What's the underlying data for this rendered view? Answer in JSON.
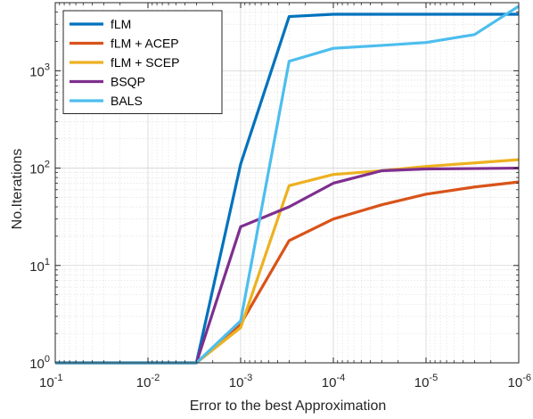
{
  "chart_data": {
    "type": "line",
    "title": "",
    "xlabel": "Error to the best Approximation",
    "ylabel": "No.Iterations",
    "x_scale": "log",
    "x_reversed": true,
    "y_scale": "log",
    "xlim": [
      0.1,
      1e-06
    ],
    "ylim": [
      1,
      5000
    ],
    "xticks": [
      {
        "base": "10",
        "exp": "-1"
      },
      {
        "base": "10",
        "exp": "-2"
      },
      {
        "base": "10",
        "exp": "-3"
      },
      {
        "base": "10",
        "exp": "-4"
      },
      {
        "base": "10",
        "exp": "-5"
      },
      {
        "base": "10",
        "exp": "-6"
      }
    ],
    "yticks": [
      {
        "base": "10",
        "exp": "0"
      },
      {
        "base": "10",
        "exp": "1"
      },
      {
        "base": "10",
        "exp": "2"
      },
      {
        "base": "10",
        "exp": "3"
      }
    ],
    "grid": "major and minor",
    "legend_position": "top-left",
    "x": [
      0.1,
      0.003,
      0.001,
      0.0003,
      0.0001,
      3e-05,
      1e-05,
      3e-06,
      1e-06
    ],
    "series": [
      {
        "name": "fLM",
        "color": "#0072BD",
        "values": [
          1,
          1,
          110,
          3600,
          3800,
          3800,
          3800,
          3800,
          3800
        ]
      },
      {
        "name": "fLM + ACEP",
        "color": "#D95319",
        "values": [
          1,
          1,
          2.5,
          18,
          30,
          42,
          54,
          64,
          72
        ]
      },
      {
        "name": "fLM + SCEP",
        "color": "#EDB120",
        "values": [
          1,
          1,
          2.3,
          66,
          86,
          94,
          104,
          113,
          122
        ]
      },
      {
        "name": "BSQP",
        "color": "#7E2F8E",
        "values": [
          1,
          1,
          25,
          40,
          70,
          94,
          98,
          99,
          100
        ]
      },
      {
        "name": "BALS",
        "color": "#4DBEEE",
        "values": [
          1,
          1,
          2.7,
          1250,
          1700,
          1820,
          1950,
          2350,
          4600
        ]
      }
    ]
  }
}
